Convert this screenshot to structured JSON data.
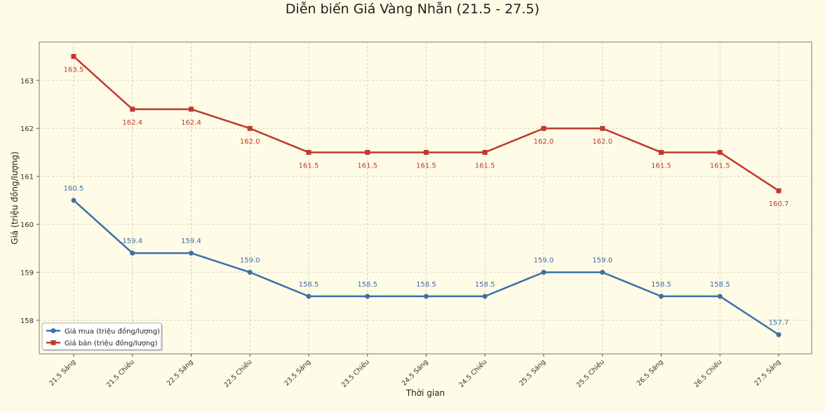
{
  "chart_data": {
    "type": "line",
    "title": "Diễn biến Giá Vàng Nhẫn (21.5 - 27.5)",
    "xlabel": "Thời gian",
    "ylabel": "Giá (triệu đồng/lượng)",
    "categories": [
      "21.5 Sáng",
      "21.5 Chiều",
      "22.5 Sáng",
      "22.5 Chiều",
      "23.5 Sáng",
      "23.5 Chiều",
      "24.5 Sáng",
      "24.5 Chiều",
      "25.5 Sáng",
      "25.5 Chiều",
      "26.5 Sáng",
      "26.5 Chiều",
      "27.5 Sáng"
    ],
    "ylim": [
      157.3,
      163.8
    ],
    "yticks": [
      158,
      159,
      160,
      161,
      162,
      163
    ],
    "grid": true,
    "legend_position": "bottom-left",
    "series": [
      {
        "name": "Giá mua (triệu đồng/lượng)",
        "color": "#3d6fa8",
        "marker": "circle",
        "values": [
          160.5,
          159.4,
          159.4,
          159.0,
          158.5,
          158.5,
          158.5,
          158.5,
          159.0,
          159.0,
          158.5,
          158.5,
          157.7
        ],
        "labels": [
          "160.5",
          "159.4",
          "159.4",
          "159.0",
          "158.5",
          "158.5",
          "158.5",
          "158.5",
          "159.0",
          "159.0",
          "158.5",
          "158.5",
          "157.7"
        ]
      },
      {
        "name": "Giá bán (triệu đồng/lượng)",
        "color": "#c0392b",
        "marker": "square",
        "values": [
          163.5,
          162.4,
          162.4,
          162.0,
          161.5,
          161.5,
          161.5,
          161.5,
          162.0,
          162.0,
          161.5,
          161.5,
          160.7
        ],
        "labels": [
          "163.5",
          "162.4",
          "162.4",
          "162.0",
          "161.5",
          "161.5",
          "161.5",
          "161.5",
          "162.0",
          "162.0",
          "161.5",
          "161.5",
          "160.7"
        ]
      }
    ]
  }
}
